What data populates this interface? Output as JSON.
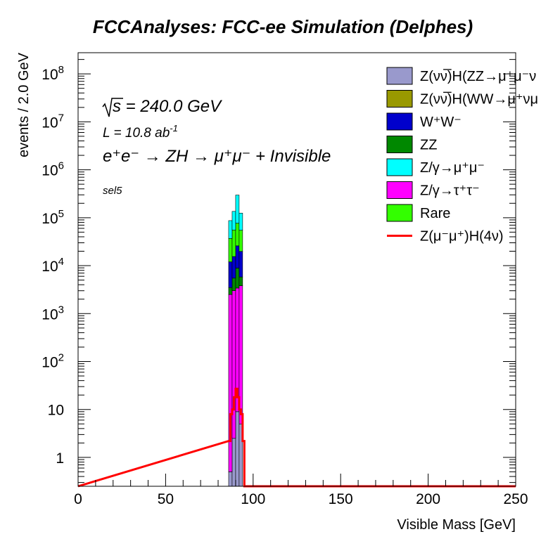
{
  "chart_data": {
    "type": "bar",
    "title": "FCCAnalyses: FCC-ee Simulation (Delphes)",
    "xlabel": "Visible Mass [GeV]",
    "ylabel": "events / 2.0 GeV",
    "xlim": [
      0,
      250
    ],
    "ylim": [
      0.25,
      300000000
    ],
    "y_scale": "log",
    "stacked": true,
    "grid": false,
    "legend_position": "top-right",
    "x_ticks": [
      {
        "value": 0,
        "label": "0"
      },
      {
        "value": 50,
        "label": "50"
      },
      {
        "value": 100,
        "label": "100"
      },
      {
        "value": 150,
        "label": "150"
      },
      {
        "value": 200,
        "label": "200"
      },
      {
        "value": 250,
        "label": "250"
      }
    ],
    "y_ticks": [
      {
        "value": 1,
        "base": "1",
        "exp": ""
      },
      {
        "value": 10,
        "base": "10",
        "exp": ""
      },
      {
        "value": 100,
        "base": "10",
        "exp": "2"
      },
      {
        "value": 1000,
        "base": "10",
        "exp": "3"
      },
      {
        "value": 10000,
        "base": "10",
        "exp": "4"
      },
      {
        "value": 100000,
        "base": "10",
        "exp": "5"
      },
      {
        "value": 1000000,
        "base": "10",
        "exp": "6"
      },
      {
        "value": 10000000,
        "base": "10",
        "exp": "7"
      },
      {
        "value": 100000000,
        "base": "10",
        "exp": "8"
      }
    ],
    "annotations": {
      "sqrt_s": "s = 240.0 GeV",
      "lumi": "L = 10.8 ab",
      "lumi_exp": "-1",
      "process": "e⁺e⁻ → ZH → μ⁺μ⁻ + Invisible",
      "selection": "sel5"
    },
    "bin_edges": [
      86,
      88,
      90,
      92,
      94,
      96
    ],
    "stack": [
      {
        "name": "Z(νν̅)H(ZZ→μ⁺μ⁻ν⁺ν⁻)",
        "legend_label": "Z(νν̅)H(ZZ→μ⁺μ⁻ν",
        "color": "#9999cc",
        "values": [
          0.5,
          2.5,
          9,
          5,
          0
        ]
      },
      {
        "name": "Z(νν̅)H(WW→μ⁺νμ⁻ν)",
        "legend_label": "Z(νν̅)H(WW→μ⁺νμ",
        "color": "#999900",
        "values": [
          0,
          0,
          0,
          0,
          0
        ]
      },
      {
        "name": "Z/γ→τ⁺τ⁻",
        "legend_label": "Z/γ→τ⁺τ⁻",
        "color": "#ff00ff",
        "values": [
          2500,
          3000,
          3400,
          3800,
          0
        ]
      },
      {
        "name": "ZZ",
        "legend_label": "ZZ",
        "color": "#008800",
        "values": [
          1000,
          2500,
          5500,
          2000,
          0
        ]
      },
      {
        "name": "W⁺W⁻",
        "legend_label": "W⁺W⁻",
        "color": "#0000cc",
        "values": [
          8500,
          10000,
          17000,
          14000,
          0
        ]
      },
      {
        "name": "Rare",
        "legend_label": "Rare",
        "color": "#33ff00",
        "values": [
          25000,
          40000,
          51000,
          35000,
          0
        ]
      },
      {
        "name": "Z/γ→μ⁺μ⁻",
        "legend_label": "Z/γ→μ⁺μ⁻",
        "color": "#00ffff",
        "values": [
          50000,
          80000,
          220000,
          70000,
          0
        ]
      }
    ],
    "legend_order": [
      0,
      1,
      4,
      3,
      6,
      2,
      5
    ],
    "signal": {
      "name": "Z(μ⁻μ⁺)H(4ν)",
      "legend_label": "Z(μ⁻μ⁺)H(4ν)",
      "color": "#ff0000",
      "bin_edges": [
        86,
        87,
        88,
        89,
        90,
        91,
        92,
        93,
        94,
        95,
        96
      ],
      "values": [
        2.2,
        8,
        10,
        18,
        27,
        18,
        10,
        8,
        2.2,
        0
      ]
    }
  }
}
